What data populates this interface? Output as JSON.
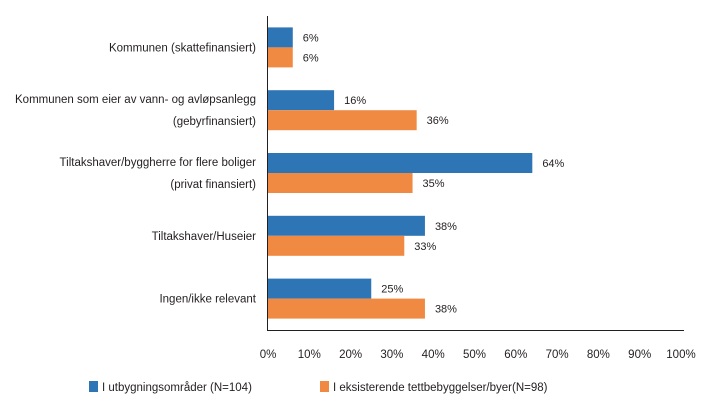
{
  "chart_data": {
    "type": "bar",
    "orientation": "horizontal",
    "categories": [
      [
        "Kommunen (skattefinansiert)"
      ],
      [
        "Kommunen som eier av vann- og avløpsanlegg",
        "(gebyrfinansiert)"
      ],
      [
        "Tiltakshaver/byggherre for flere boliger",
        "(privat finansiert)"
      ],
      [
        "Tiltakshaver/Huseier"
      ],
      [
        "Ingen/ikke relevant"
      ]
    ],
    "series": [
      {
        "name": "I utbygningsområder (N=104)",
        "color": "#2e75b6",
        "values": [
          6,
          16,
          64,
          38,
          25
        ],
        "labels": [
          "6%",
          "16%",
          "64%",
          "38%",
          "25%"
        ]
      },
      {
        "name": "I eksisterende tettbebyggelser/byer(N=98)",
        "color": "#f08a42",
        "values": [
          6,
          36,
          35,
          33,
          38
        ],
        "labels": [
          "6%",
          "36%",
          "35%",
          "33%",
          "38%"
        ]
      }
    ],
    "xlim": [
      0,
      100
    ],
    "x_ticks": [
      "0%",
      "10%",
      "20%",
      "30%",
      "40%",
      "50%",
      "60%",
      "70%",
      "80%",
      "90%",
      "100%"
    ],
    "grid": false,
    "legend_position": "bottom"
  }
}
